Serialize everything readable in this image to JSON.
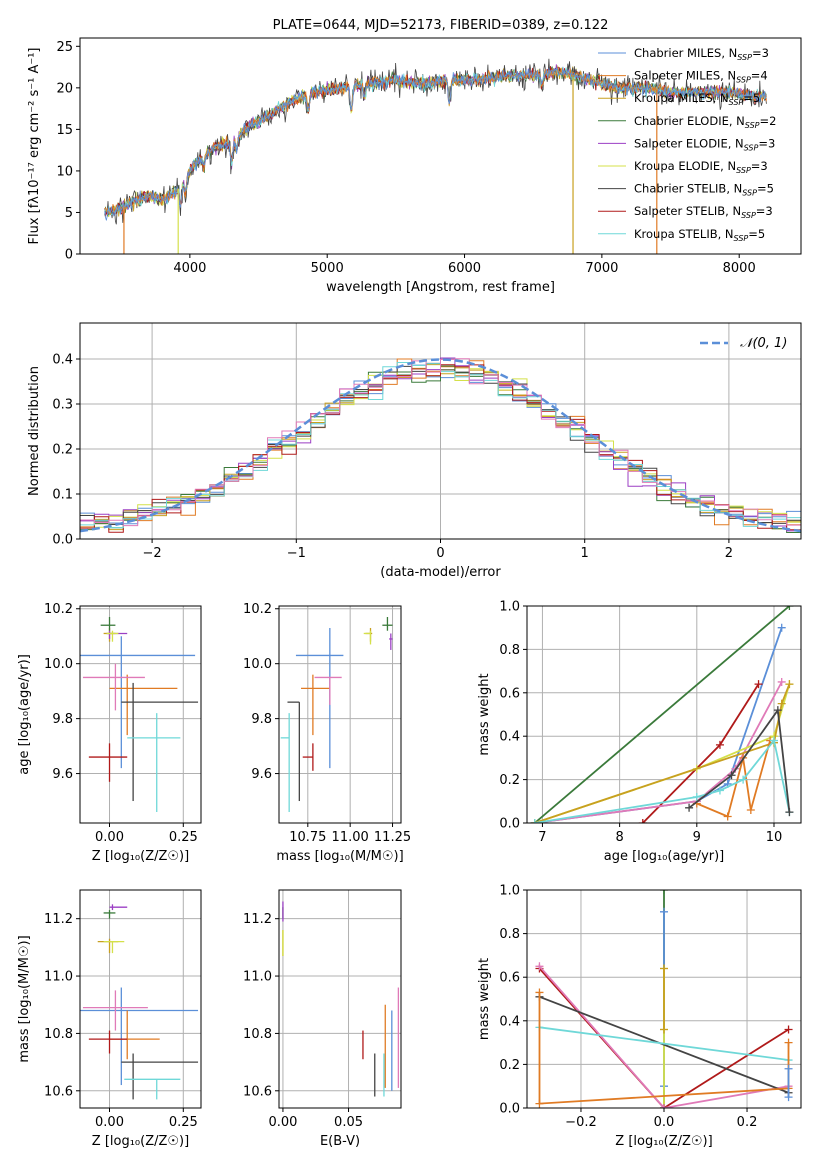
{
  "figure": {
    "title": "PLATE=0644, MJD=52173, FIBERID=0389, z=0.122"
  },
  "colors": {
    "chabrier_miles": "#5b8fd8",
    "salpeter_miles": "#e07b24",
    "kroupa_miles": "#c8a020",
    "chabrier_elodie": "#3a7a3a",
    "salpeter_elodie": "#9b3fc4",
    "kroupa_elodie": "#d4e04a",
    "chabrier_stelib": "#444444",
    "salpeter_stelib": "#b01a1a",
    "kroupa_stelib": "#6fd8d8",
    "model_pink": "#e07ab8",
    "gauss": "#5b8fd8"
  },
  "chart_data": [
    {
      "id": "spectrum",
      "type": "line",
      "title": "PLATE=0644, MJD=52173, FIBERID=0389, z=0.122",
      "xlabel": "wavelength [Angstrom, rest frame]",
      "ylabel": "Flux [fλ10⁻¹⁷ erg cm⁻² s⁻¹ A⁻¹]",
      "xlim": [
        3200,
        8450
      ],
      "ylim": [
        0,
        26
      ],
      "xticks": [
        4000,
        5000,
        6000,
        7000,
        8000
      ],
      "yticks": [
        0,
        5,
        10,
        15,
        20,
        25
      ],
      "grid": false,
      "legend_position": "top-right",
      "legend": [
        "Chabrier MILES, N_SSP=3",
        "Salpeter MILES, N_SSP=4",
        "Kroupa MILES, N_SSP=5",
        "Chabrier ELODIE, N_SSP=2",
        "Salpeter ELODIE, N_SSP=3",
        "Kroupa ELODIE, N_SSP=3",
        "Chabrier STELIB, N_SSP=5",
        "Salpeter STELIB, N_SSP=3",
        "Kroupa STELIB, N_SSP=5"
      ],
      "continuum_x": [
        3380,
        3500,
        3600,
        3700,
        3800,
        3900,
        4000,
        4100,
        4200,
        4300,
        4400,
        4500,
        4700,
        4900,
        5100,
        5300,
        5500,
        5700,
        5900,
        6100,
        6300,
        6500,
        6700,
        6900,
        7100,
        7300,
        7500,
        7700,
        7900,
        8100,
        8200
      ],
      "continuum_y": [
        5,
        5.5,
        6.5,
        7,
        6.5,
        7.5,
        10,
        12,
        13,
        13.5,
        15,
        16,
        18,
        19.5,
        20,
        20.5,
        21,
        20.5,
        21,
        21,
        21.5,
        21.5,
        22,
        21,
        20,
        20,
        19.5,
        19.5,
        19.5,
        19,
        19
      ]
    },
    {
      "id": "residuals",
      "type": "step",
      "xlabel": "(data-model)/error",
      "ylabel": "Normed distribution",
      "xlim": [
        -2.5,
        2.5
      ],
      "ylim": [
        0,
        0.48
      ],
      "xticks": [
        -2,
        -1,
        0,
        1,
        2
      ],
      "yticks": [
        0.0,
        0.1,
        0.2,
        0.3,
        0.4
      ],
      "grid": true,
      "legend_position": "top-right",
      "legend": [
        "𝒩(0, 1)"
      ],
      "gaussian": {
        "mu": 0,
        "sigma": 1
      }
    },
    {
      "id": "age_vs_z",
      "type": "errorbar",
      "xlabel": "Z [log₁₀(Z/Z☉)]",
      "ylabel": "age [log₁₀(age/yr)]",
      "xlim": [
        -0.1,
        0.31
      ],
      "ylim": [
        9.42,
        10.21
      ],
      "xticks": [
        0.0,
        0.25
      ],
      "yticks": [
        9.6,
        9.8,
        10.0,
        10.2
      ],
      "grid": true,
      "points": [
        {
          "model": "chabrier_miles",
          "x": 0.04,
          "y": 10.03,
          "xerr": [
            0.14,
            0.25
          ],
          "yerr": [
            0.41,
            0.07
          ]
        },
        {
          "model": "salpeter_miles",
          "x": 0.06,
          "y": 9.91,
          "xerr": [
            0.06,
            0.17
          ],
          "yerr": [
            0.17,
            0.05
          ]
        },
        {
          "model": "kroupa_miles",
          "x": 0.0,
          "y": 10.11,
          "xerr": [
            0.02,
            0.02
          ],
          "yerr": [
            0.03,
            0.02
          ]
        },
        {
          "model": "chabrier_elodie",
          "x": 0.0,
          "y": 10.14,
          "xerr": [
            0.03,
            0.02
          ],
          "yerr": [
            0.02,
            0.03
          ]
        },
        {
          "model": "salpeter_elodie",
          "x": 0.0,
          "y": 10.11,
          "xerr": [
            0.01,
            0.06
          ],
          "yerr": [
            0.02,
            0.01
          ]
        },
        {
          "model": "kroupa_elodie",
          "x": 0.01,
          "y": 10.11,
          "xerr": [
            0.02,
            0.02
          ],
          "yerr": [
            0.03,
            0.01
          ]
        },
        {
          "model": "chabrier_stelib",
          "x": 0.08,
          "y": 9.86,
          "xerr": [
            0.04,
            0.22
          ],
          "yerr": [
            0.36,
            0.07
          ]
        },
        {
          "model": "salpeter_stelib",
          "x": 0.0,
          "y": 9.66,
          "xerr": [
            0.07,
            0.06
          ],
          "yerr": [
            0.09,
            0.05
          ]
        },
        {
          "model": "kroupa_stelib",
          "x": 0.16,
          "y": 9.73,
          "xerr": [
            0.1,
            0.08
          ],
          "yerr": [
            0.27,
            0.09
          ]
        },
        {
          "model": "model_pink",
          "x": 0.02,
          "y": 9.95,
          "xerr": [
            0.11,
            0.1
          ],
          "yerr": [
            0.12,
            0.05
          ]
        }
      ]
    },
    {
      "id": "age_vs_mass",
      "type": "errorbar",
      "xlabel": "mass [log₁₀(M/M☉)]",
      "ylabel": "",
      "xlim": [
        10.58,
        11.3
      ],
      "ylim": [
        9.42,
        10.21
      ],
      "xticks": [
        10.75,
        11.0,
        11.25
      ],
      "yticks": [
        9.6,
        9.8,
        10.0,
        10.2
      ],
      "grid": true,
      "points": [
        {
          "model": "chabrier_miles",
          "x": 10.88,
          "y": 10.03,
          "xerr": [
            0.2,
            0.08
          ],
          "yerr": [
            0.41,
            0.1
          ]
        },
        {
          "model": "salpeter_miles",
          "x": 10.78,
          "y": 9.91,
          "xerr": [
            0.07,
            0.1
          ],
          "yerr": [
            0.17,
            0.05
          ]
        },
        {
          "model": "kroupa_miles",
          "x": 11.12,
          "y": 10.11,
          "xerr": [
            0.03,
            0.01
          ],
          "yerr": [
            0.03,
            0.02
          ]
        },
        {
          "model": "chabrier_elodie",
          "x": 11.22,
          "y": 10.14,
          "xerr": [
            0.03,
            0.03
          ],
          "yerr": [
            0.02,
            0.03
          ]
        },
        {
          "model": "salpeter_elodie",
          "x": 11.24,
          "y": 10.09,
          "xerr": [
            0.01,
            0.01
          ],
          "yerr": [
            0.04,
            0.02
          ]
        },
        {
          "model": "kroupa_elodie",
          "x": 11.12,
          "y": 10.11,
          "xerr": [
            0.04,
            0.0
          ],
          "yerr": [
            0.04,
            0.01
          ]
        },
        {
          "model": "chabrier_stelib",
          "x": 10.7,
          "y": 9.86,
          "xerr": [
            0.07,
            0.0
          ],
          "yerr": [
            0.36,
            0.0
          ]
        },
        {
          "model": "salpeter_stelib",
          "x": 10.78,
          "y": 9.66,
          "xerr": [
            0.06,
            0.0
          ],
          "yerr": [
            0.05,
            0.05
          ]
        },
        {
          "model": "kroupa_stelib",
          "x": 10.64,
          "y": 9.73,
          "xerr": [
            0.05,
            0.0
          ],
          "yerr": [
            0.27,
            0.09
          ]
        },
        {
          "model": "model_pink",
          "x": 10.88,
          "y": 9.95,
          "xerr": [
            0.09,
            0.07
          ],
          "yerr": [
            0.1,
            0.0
          ]
        }
      ]
    },
    {
      "id": "weight_vs_age",
      "type": "line",
      "xlabel": "age [log₁₀(age/yr)]",
      "ylabel": "mass weight",
      "xlim": [
        6.8,
        10.35
      ],
      "ylim": [
        0,
        1.0
      ],
      "xticks": [
        7,
        8,
        9,
        10
      ],
      "yticks": [
        0.0,
        0.2,
        0.4,
        0.6,
        0.8,
        1.0
      ],
      "grid": true,
      "series": [
        {
          "model": "chabrier_elodie",
          "x": [
            6.9,
            10.2
          ],
          "y": [
            0.0,
            1.0
          ]
        },
        {
          "model": "chabrier_miles",
          "x": [
            6.9,
            9.0,
            9.4,
            10.1
          ],
          "y": [
            0.0,
            0.1,
            0.18,
            0.9
          ]
        },
        {
          "model": "salpeter_stelib",
          "x": [
            8.3,
            9.3,
            9.8
          ],
          "y": [
            0.0,
            0.36,
            0.64
          ]
        },
        {
          "model": "model_pink",
          "x": [
            6.9,
            9.0,
            9.5,
            10.1
          ],
          "y": [
            0.0,
            0.1,
            0.25,
            0.65
          ]
        },
        {
          "model": "kroupa_elodie",
          "x": [
            6.9,
            9.0,
            10.0,
            10.2
          ],
          "y": [
            0.0,
            0.25,
            0.4,
            0.64
          ]
        },
        {
          "model": "kroupa_miles",
          "x": [
            6.9,
            10.0,
            10.1,
            10.2
          ],
          "y": [
            0.0,
            0.37,
            0.55,
            0.64
          ]
        },
        {
          "model": "salpeter_miles",
          "x": [
            9.0,
            9.4,
            9.6,
            9.7,
            9.95
          ],
          "y": [
            0.09,
            0.03,
            0.3,
            0.06,
            0.38
          ]
        },
        {
          "model": "kroupa_stelib",
          "x": [
            6.9,
            9.0,
            9.3,
            9.6,
            10.0,
            10.2
          ],
          "y": [
            0.0,
            0.12,
            0.15,
            0.2,
            0.38,
            0.05
          ]
        },
        {
          "model": "chabrier_stelib",
          "x": [
            8.9,
            9.45,
            10.05,
            10.2
          ],
          "y": [
            0.07,
            0.22,
            0.52,
            0.05
          ]
        }
      ]
    },
    {
      "id": "mass_vs_z",
      "type": "errorbar",
      "xlabel": "Z [log₁₀(Z/Z☉)]",
      "ylabel": "mass [log₁₀(M/M☉)]",
      "xlim": [
        -0.1,
        0.31
      ],
      "ylim": [
        10.54,
        11.3
      ],
      "xticks": [
        0.0,
        0.25
      ],
      "yticks": [
        10.6,
        10.8,
        11.0,
        11.2
      ],
      "grid": true,
      "points": [
        {
          "model": "chabrier_miles",
          "x": 0.04,
          "y": 10.88,
          "xerr": [
            0.14,
            0.26
          ],
          "yerr": [
            0.26,
            0.08
          ]
        },
        {
          "model": "salpeter_miles",
          "x": 0.06,
          "y": 10.78,
          "xerr": [
            0.06,
            0.11
          ],
          "yerr": [
            0.07,
            0.1
          ]
        },
        {
          "model": "kroupa_miles",
          "x": 0.0,
          "y": 11.12,
          "xerr": [
            0.04,
            0.03
          ],
          "yerr": [
            0.04,
            0.01
          ]
        },
        {
          "model": "chabrier_elodie",
          "x": 0.0,
          "y": 11.22,
          "xerr": [
            0.02,
            0.02
          ],
          "yerr": [
            0.02,
            0.01
          ]
        },
        {
          "model": "salpeter_elodie",
          "x": 0.01,
          "y": 11.24,
          "xerr": [
            0.01,
            0.05
          ],
          "yerr": [
            0.01,
            0.01
          ]
        },
        {
          "model": "kroupa_elodie",
          "x": 0.01,
          "y": 11.12,
          "xerr": [
            0.03,
            0.04
          ],
          "yerr": [
            0.04,
            0.0
          ]
        },
        {
          "model": "chabrier_stelib",
          "x": 0.08,
          "y": 10.7,
          "xerr": [
            0.04,
            0.22
          ],
          "yerr": [
            0.13,
            0.03
          ]
        },
        {
          "model": "salpeter_stelib",
          "x": 0.0,
          "y": 10.78,
          "xerr": [
            0.07,
            0.06
          ],
          "yerr": [
            0.05,
            0.03
          ]
        },
        {
          "model": "kroupa_stelib",
          "x": 0.16,
          "y": 10.64,
          "xerr": [
            0.11,
            0.08
          ],
          "yerr": [
            0.07,
            0.0
          ]
        },
        {
          "model": "model_pink",
          "x": 0.02,
          "y": 10.89,
          "xerr": [
            0.11,
            0.11
          ],
          "yerr": [
            0.08,
            0.06
          ]
        }
      ]
    },
    {
      "id": "mass_vs_ebv",
      "type": "errorbar",
      "xlabel": "E(B-V)",
      "ylabel": "",
      "xlim": [
        -0.003,
        0.09
      ],
      "ylim": [
        10.54,
        11.3
      ],
      "xticks": [
        0.0,
        0.05
      ],
      "yticks": [
        10.6,
        10.8,
        11.0,
        11.2
      ],
      "grid": true,
      "points": [
        {
          "model": "chabrier_miles",
          "x": 0.083,
          "y": 10.75,
          "xerr": [
            0,
            0
          ],
          "yerr": [
            0.15,
            0.13
          ]
        },
        {
          "model": "salpeter_miles",
          "x": 0.078,
          "y": 10.78,
          "xerr": [
            0,
            0
          ],
          "yerr": [
            0.17,
            0.12
          ]
        },
        {
          "model": "kroupa_miles",
          "x": 0.0,
          "y": 11.12,
          "xerr": [
            0,
            0
          ],
          "yerr": [
            0.05,
            0.04
          ]
        },
        {
          "model": "chabrier_elodie",
          "x": 0.0,
          "y": 11.22,
          "xerr": [
            0,
            0
          ],
          "yerr": [
            0.02,
            0.02
          ]
        },
        {
          "model": "salpeter_elodie",
          "x": 0.0,
          "y": 11.22,
          "xerr": [
            0,
            0
          ],
          "yerr": [
            0.03,
            0.04
          ]
        },
        {
          "model": "kroupa_elodie",
          "x": 0.0,
          "y": 11.12,
          "xerr": [
            0,
            0
          ],
          "yerr": [
            0.05,
            0.04
          ]
        },
        {
          "model": "chabrier_stelib",
          "x": 0.07,
          "y": 10.66,
          "xerr": [
            0,
            0
          ],
          "yerr": [
            0.08,
            0.07
          ]
        },
        {
          "model": "salpeter_stelib",
          "x": 0.061,
          "y": 10.76,
          "xerr": [
            0,
            0
          ],
          "yerr": [
            0.05,
            0.05
          ]
        },
        {
          "model": "kroupa_stelib",
          "x": 0.077,
          "y": 10.66,
          "xerr": [
            0,
            0
          ],
          "yerr": [
            0.08,
            0.07
          ]
        },
        {
          "model": "model_pink",
          "x": 0.088,
          "y": 10.8,
          "xerr": [
            0,
            0
          ],
          "yerr": [
            0.19,
            0.16
          ]
        }
      ]
    },
    {
      "id": "weight_vs_z",
      "type": "line",
      "xlabel": "Z [log₁₀(Z/Z☉)]",
      "ylabel": "mass weight",
      "xlim": [
        -0.33,
        0.33
      ],
      "ylim": [
        0,
        1.0
      ],
      "xticks": [
        -0.2,
        0.0,
        0.2
      ],
      "yticks": [
        0.0,
        0.2,
        0.4,
        0.6,
        0.8,
        1.0
      ],
      "grid": true,
      "series": [
        {
          "model": "chabrier_elodie",
          "x": [
            0.0,
            0.0
          ],
          "y": [
            0.0,
            1.0
          ]
        },
        {
          "model": "chabrier_miles",
          "x": [
            0.0,
            0.0
          ],
          "y": [
            0.1,
            0.9
          ]
        },
        {
          "model": "kroupa_elodie",
          "x": [
            0.0,
            0.0,
            0.0
          ],
          "y": [
            0.0,
            0.36,
            0.64
          ]
        },
        {
          "model": "salpeter_stelib",
          "x": [
            -0.3,
            0.0,
            0.3
          ],
          "y": [
            0.64,
            0.0,
            0.36
          ]
        },
        {
          "model": "model_pink",
          "x": [
            -0.3,
            0.0,
            0.3
          ],
          "y": [
            0.65,
            0.0,
            0.1
          ]
        },
        {
          "model": "chabrier_stelib",
          "x": [
            -0.3,
            0.3
          ],
          "y": [
            0.51,
            0.07
          ]
        },
        {
          "model": "kroupa_stelib",
          "x": [
            -0.3,
            0.3
          ],
          "y": [
            0.37,
            0.22
          ]
        },
        {
          "model": "salpeter_miles",
          "x": [
            -0.3,
            -0.3,
            0.3,
            0.3
          ],
          "y": [
            0.53,
            0.02,
            0.09,
            0.3
          ]
        },
        {
          "model": "kroupa_miles",
          "x": [
            0.0,
            0.0
          ],
          "y": [
            0.36,
            0.64
          ]
        },
        {
          "model": "chabrier_miles",
          "x": [
            0.3,
            0.3
          ],
          "y": [
            0.05,
            0.18
          ]
        }
      ]
    }
  ]
}
